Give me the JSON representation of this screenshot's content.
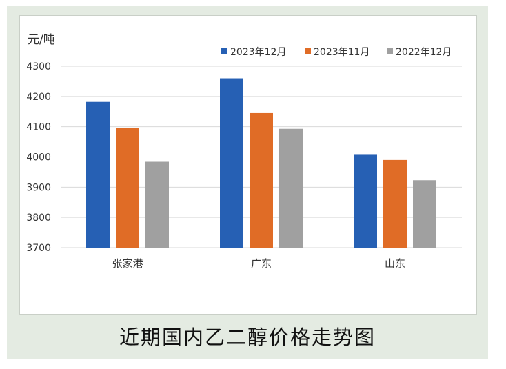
{
  "caption": "近期国内乙二醇价格走势图",
  "chart_data": {
    "type": "bar",
    "title": "",
    "ylabel": "元/吨",
    "xlabel": "",
    "categories": [
      "张家港",
      "广东",
      "山东"
    ],
    "series": [
      {
        "name": "2023年12月",
        "color": "#2660b4",
        "values": [
          4182,
          4260,
          4007
        ]
      },
      {
        "name": "2023年11月",
        "color": "#e06c26",
        "values": [
          4095,
          4145,
          3990
        ]
      },
      {
        "name": "2022年12月",
        "color": "#a0a0a0",
        "values": [
          3984,
          4093,
          3923
        ]
      }
    ],
    "ylim": [
      3700,
      4300
    ],
    "yticks": [
      3700,
      3800,
      3900,
      4000,
      4100,
      4200,
      4300
    ],
    "grid": true,
    "legend_position": "top-right"
  }
}
